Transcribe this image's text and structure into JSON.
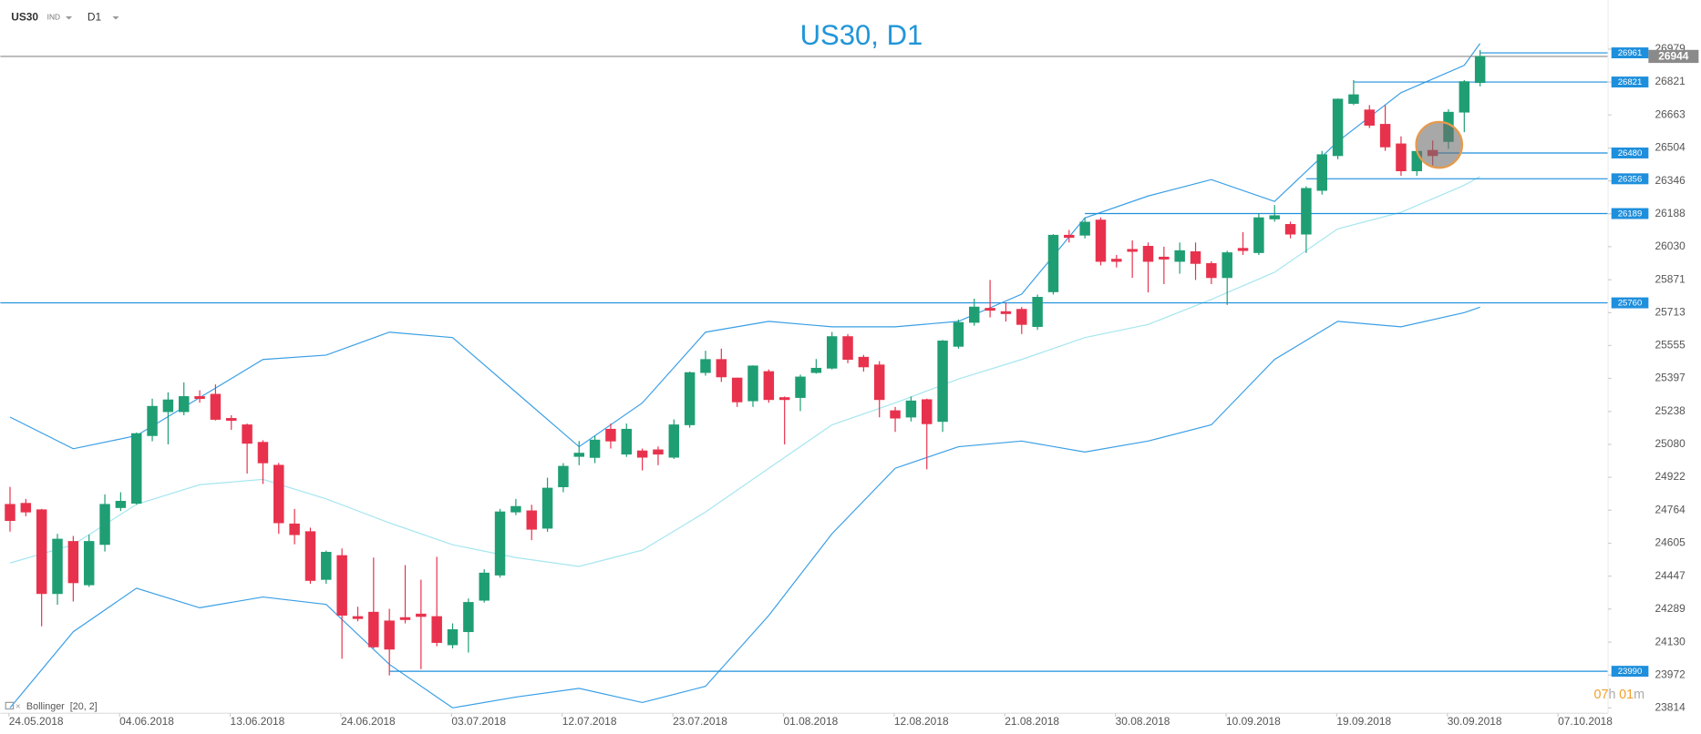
{
  "chart_data": {
    "type": "candlestick",
    "title": "US30, D1",
    "toolbar": {
      "symbol": "US30",
      "market": "IND",
      "timeframe": "D1"
    },
    "up_color": "#1f9e74",
    "down_color": "#e8324d",
    "open": [
      24792,
      24797,
      24766,
      24363,
      24614,
      24405,
      24599,
      24776,
      24797,
      25122,
      25237,
      25237,
      25310,
      25321,
      25205,
      25174,
      25090,
      24980,
      24698,
      24661,
      24431,
      24546,
      24253,
      24274,
      24232,
      24248,
      24265,
      24253,
      24117,
      24180,
      24331,
      24452,
      24755,
      24761,
      24677,
      24876,
      25022,
      25017,
      25153,
      25033,
      25049,
      25054,
      25018,
      25174,
      25425,
      25488,
      25399,
      25289,
      25430,
      25305,
      25305,
      25425,
      25446,
      25598,
      25499,
      25462,
      25242,
      25211,
      25295,
      25190,
      25551,
      25666,
      25734,
      25718,
      25729,
      25646,
      25813,
      26085,
      26085,
      26158,
      25970,
      26017,
      26032,
      25980,
      25959,
      26006,
      25949,
      25881,
      26022,
      26001,
      26163,
      26137,
      26090,
      26300,
      26467,
      26718,
      26687,
      26618,
      26524,
      26394,
      26493,
      26535,
      26676,
      26818
    ],
    "high": [
      24876,
      24818,
      24770,
      24650,
      24640,
      24646,
      24840,
      24850,
      25137,
      25300,
      25330,
      25378,
      25340,
      25368,
      25220,
      25180,
      25100,
      24991,
      24770,
      24680,
      24570,
      24580,
      24300,
      24536,
      24290,
      24500,
      24430,
      24540,
      24220,
      24340,
      24480,
      24770,
      24818,
      24790,
      24920,
      24990,
      25096,
      25122,
      25180,
      25180,
      25060,
      25070,
      25200,
      25430,
      25530,
      25540,
      25400,
      25460,
      25440,
      25310,
      25415,
      25490,
      25620,
      25610,
      25510,
      25480,
      25260,
      25310,
      25300,
      25582,
      25680,
      25780,
      25870,
      25760,
      25740,
      25800,
      26090,
      26110,
      26170,
      26170,
      25990,
      26060,
      26050,
      26030,
      26050,
      26050,
      25960,
      26010,
      26100,
      26190,
      26230,
      26150,
      26320,
      26490,
      26742,
      26830,
      26710,
      26710,
      26560,
      26500,
      26540,
      26690,
      26830,
      26975
    ],
    "low": [
      24661,
      24735,
      24206,
      24310,
      24325,
      24395,
      24565,
      24760,
      24790,
      25095,
      25080,
      25220,
      25280,
      25195,
      25150,
      24940,
      24890,
      24650,
      24600,
      24410,
      24410,
      24050,
      24230,
      24100,
      23970,
      24220,
      24000,
      24110,
      24100,
      24080,
      24320,
      24440,
      24740,
      24620,
      24660,
      24850,
      24980,
      24990,
      25060,
      25020,
      24955,
      24980,
      25010,
      25160,
      25410,
      25380,
      25260,
      25260,
      25280,
      25080,
      25240,
      25420,
      25440,
      25470,
      25430,
      25210,
      25140,
      25190,
      24960,
      25140,
      25540,
      25650,
      25690,
      25670,
      25610,
      25630,
      25800,
      26050,
      26070,
      25940,
      25930,
      25880,
      25810,
      25850,
      25900,
      25870,
      25850,
      25750,
      25990,
      25990,
      26150,
      26070,
      26000,
      26280,
      26450,
      26710,
      26600,
      26490,
      26370,
      26370,
      26420,
      26500,
      26580,
      26800
    ],
    "close": [
      24714,
      24755,
      24363,
      24625,
      24415,
      24614,
      24792,
      24807,
      25132,
      25263,
      25294,
      25310,
      25300,
      25200,
      25195,
      25085,
      24991,
      24703,
      24646,
      24426,
      24562,
      24259,
      24243,
      24107,
      24096,
      24238,
      24253,
      24128,
      24190,
      24321,
      24462,
      24756,
      24782,
      24672,
      24870,
      24975,
      25038,
      25101,
      25096,
      25153,
      25018,
      25033,
      25174,
      25425,
      25488,
      25404,
      25284,
      25457,
      25295,
      25295,
      25404,
      25446,
      25598,
      25488,
      25452,
      25295,
      25206,
      25289,
      25179,
      25577,
      25666,
      25740,
      25724,
      25708,
      25656,
      25787,
      26085,
      26074,
      26148,
      25959,
      25959,
      26007,
      25959,
      25970,
      26011,
      25949,
      25881,
      26001,
      26011,
      26169,
      26179,
      26090,
      26310,
      26472,
      26739,
      26760,
      26613,
      26509,
      26394,
      26488,
      26467,
      26676,
      26823,
      26944
    ],
    "xlim": [
      -0.62,
      101.1
    ],
    "xticks": [
      {
        "value": 0,
        "label": "24.05.2018"
      },
      {
        "value": 7,
        "label": "04.06.2018"
      },
      {
        "value": 14,
        "label": "13.06.2018"
      },
      {
        "value": 21,
        "label": "24.06.2018"
      },
      {
        "value": 28,
        "label": "03.07.2018"
      },
      {
        "value": 35,
        "label": "12.07.2018"
      },
      {
        "value": 42,
        "label": "23.07.2018"
      },
      {
        "value": 49,
        "label": "01.08.2018"
      },
      {
        "value": 56,
        "label": "12.08.2018"
      },
      {
        "value": 63,
        "label": "21.08.2018"
      },
      {
        "value": 70,
        "label": "30.08.2018"
      },
      {
        "value": 77,
        "label": "10.09.2018"
      },
      {
        "value": 84,
        "label": "19.09.2018"
      },
      {
        "value": 91,
        "label": "30.09.2018"
      },
      {
        "value": 98,
        "label": "07.10.2018"
      }
    ],
    "ylim": [
      23788,
      27215
    ],
    "yticks": [
      26979,
      26821,
      26663,
      26504,
      26346,
      26188,
      26030,
      25871,
      25713,
      25555,
      25397,
      25238,
      25080,
      24922,
      24764,
      24605,
      24447,
      24289,
      24130,
      23972,
      23814
    ],
    "indicator": {
      "name": "Bollinger",
      "params": "[20, 2]",
      "band_color": "#3a9fe6",
      "middle_color": "#a6e6ef",
      "x": [
        0,
        4,
        8,
        12,
        16,
        20,
        24,
        28,
        32,
        36,
        40,
        44,
        48,
        52,
        56,
        60,
        64,
        68,
        72,
        76,
        80,
        84,
        88,
        92,
        93
      ],
      "upper": [
        25211,
        25059,
        25122,
        25305,
        25488,
        25509,
        25619,
        25593,
        25331,
        25069,
        25279,
        25619,
        25671,
        25645,
        25645,
        25671,
        25802,
        26168,
        26273,
        26352,
        26247,
        26535,
        26770,
        26901,
        27006
      ],
      "middle": [
        24510,
        24598,
        24792,
        24886,
        24912,
        24818,
        24703,
        24598,
        24536,
        24494,
        24572,
        24755,
        24965,
        25174,
        25279,
        25394,
        25488,
        25593,
        25656,
        25776,
        25907,
        26116,
        26195,
        26325,
        26367
      ],
      "lower": [
        23814,
        24180,
        24389,
        24295,
        24347,
        24311,
        24023,
        23814,
        23866,
        23908,
        23840,
        23918,
        24258,
        24651,
        24965,
        25069,
        25096,
        25043,
        25096,
        25174,
        25488,
        25671,
        25645,
        25713,
        25739
      ]
    },
    "level_color": "#1e8fdc",
    "levels": [
      {
        "value": 26961,
        "x_start": 93
      },
      {
        "value": 26821,
        "x_start": 85
      },
      {
        "value": 26480,
        "x_start": 90
      },
      {
        "value": 26356,
        "x_start": 82
      },
      {
        "value": 26189,
        "x_start": 68
      },
      {
        "value": 25760
      },
      {
        "value": 23990,
        "x_start": 24
      }
    ],
    "current_price": {
      "value": 26944,
      "color": "#8a8a8a"
    },
    "countdown": [
      "07",
      "h",
      "01",
      "m"
    ]
  }
}
